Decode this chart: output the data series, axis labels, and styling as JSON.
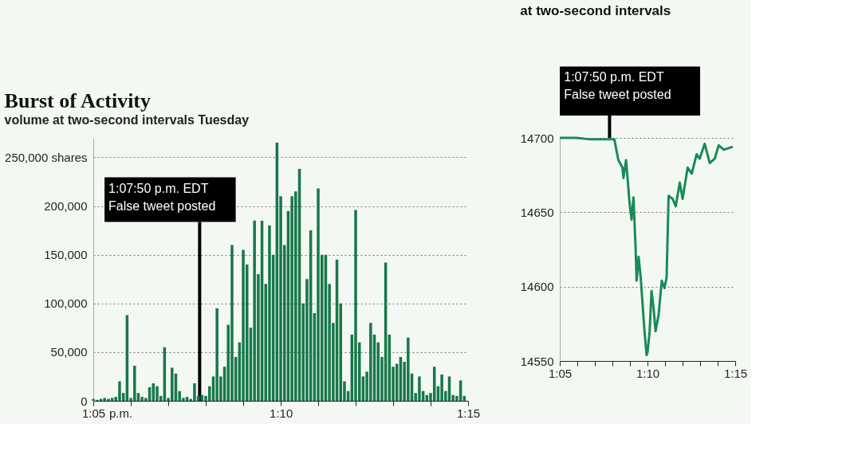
{
  "chart_data": [
    {
      "type": "bar",
      "title": "Burst of Activity",
      "subtitle": "volume at two-second intervals Tuesday",
      "color": "#17784a",
      "x": [
        1.08333,
        1.085,
        1.08667,
        1.08833,
        1.09,
        1.09167,
        1.09333,
        1.095,
        1.09667,
        1.09833,
        1.1,
        1.10167,
        1.10333,
        1.105,
        1.10667,
        1.10833,
        1.11,
        1.11167,
        1.11333,
        1.115,
        1.11667,
        1.11833,
        1.12,
        1.12167,
        1.12333,
        1.125,
        1.12667,
        1.12833,
        1.13,
        1.13167,
        1.13333,
        1.135,
        1.13667,
        1.13833,
        1.14,
        1.14167,
        1.14333,
        1.145,
        1.14667,
        1.14833,
        1.15,
        1.15167,
        1.15333,
        1.155,
        1.15667,
        1.15833,
        1.16,
        1.16167,
        1.16333,
        1.165,
        1.16667,
        1.16833,
        1.17,
        1.17167,
        1.17333,
        1.175,
        1.17667,
        1.17833,
        1.18,
        1.18167,
        1.18333,
        1.185,
        1.18667,
        1.18833,
        1.19,
        1.19167,
        1.19333,
        1.195,
        1.19667,
        1.19833,
        1.2,
        1.20167,
        1.20333,
        1.205,
        1.20667,
        1.20833,
        1.21,
        1.21167,
        1.21333,
        1.215,
        1.21667,
        1.21833,
        1.22,
        1.22167,
        1.22333,
        1.225,
        1.22667,
        1.22833,
        1.23,
        1.23167,
        1.23333,
        1.235,
        1.23667,
        1.23833,
        1.24,
        1.24167,
        1.24333,
        1.245,
        1.24667,
        1.24833
      ],
      "values": [
        2000,
        1000,
        2000,
        3000,
        2000,
        3000,
        4000,
        20000,
        8000,
        88000,
        3000,
        36000,
        8000,
        4000,
        3000,
        14000,
        18000,
        15000,
        5000,
        55000,
        3000,
        34000,
        28000,
        10000,
        3000,
        4000,
        2000,
        18000,
        5000,
        6000,
        5000,
        15000,
        25000,
        95000,
        25000,
        35000,
        78000,
        160000,
        45000,
        60000,
        155000,
        140000,
        75000,
        185000,
        130000,
        185000,
        120000,
        180000,
        150000,
        265000,
        210000,
        160000,
        195000,
        210000,
        215000,
        238000,
        100000,
        125000,
        175000,
        90000,
        218000,
        150000,
        150000,
        120000,
        80000,
        145000,
        100000,
        20000,
        10000,
        68000,
        196000,
        60000,
        25000,
        30000,
        80000,
        68000,
        60000,
        45000,
        142000,
        68000,
        35000,
        38000,
        45000,
        40000,
        65000,
        28000,
        8000,
        25000,
        10000,
        6000,
        8000,
        35000,
        15000,
        27000,
        10000,
        25000,
        6000,
        5000,
        21000,
        5000
      ],
      "xlim": [
        1.0833,
        1.25
      ],
      "xticks": [
        {
          "value": 1.0833,
          "label": "1:05"
        },
        {
          "value": 1.1,
          "label": null
        },
        {
          "value": 1.1167,
          "label": null
        },
        {
          "value": 1.1333,
          "label": null
        },
        {
          "value": 1.15,
          "label": null
        },
        {
          "value": 1.1667,
          "label": "1:10"
        },
        {
          "value": 1.1833,
          "label": null
        },
        {
          "value": 1.2,
          "label": null
        },
        {
          "value": 1.2167,
          "label": null
        },
        {
          "value": 1.2333,
          "label": null
        },
        {
          "value": 1.25,
          "label": "1:15"
        }
      ],
      "ylim": [
        0,
        270000
      ],
      "yticks": [
        {
          "value": 0,
          "label": "0"
        },
        {
          "value": 50000,
          "label": "50,000"
        },
        {
          "value": 100000,
          "label": "100,000"
        },
        {
          "value": 150000,
          "label": "150,000"
        },
        {
          "value": 200000,
          "label": "200,000"
        },
        {
          "value": 250000,
          "label": "250,000 shares"
        }
      ],
      "grid": "y",
      "annotations": [
        {
          "text": "1:07:50 p.m. EDT\nFalse tweet posted",
          "x": 1.1306,
          "y": 0
        },
        "p.m."
      ]
    },
    {
      "type": "line",
      "title": "at two-second intervals",
      "color": "#1a8a58",
      "x": [
        1.0833,
        1.099,
        1.1123,
        1.1352,
        1.1362,
        1.139,
        1.1428,
        1.1438,
        1.1463,
        1.1477,
        1.1495,
        1.1515,
        1.1533,
        1.1553,
        1.1563,
        1.1582,
        1.1602,
        1.1638,
        1.1658,
        1.1667,
        1.1687,
        1.1705,
        1.1725,
        1.1743,
        1.1772,
        1.1802,
        1.1828,
        1.1848,
        1.1867,
        1.1905,
        1.1935,
        1.1973,
        1.2,
        1.2048,
        1.2087,
        1.2133,
        1.2162,
        1.221,
        1.2258,
        1.2305,
        1.2343,
        1.2392,
        1.2477
      ],
      "values": [
        14700,
        14700,
        14699,
        14699,
        14695,
        14685,
        14680,
        14673,
        14685,
        14673,
        14657,
        14645,
        14660,
        14627,
        14604,
        14620,
        14606,
        14570,
        14554,
        14556,
        14570,
        14597,
        14585,
        14570,
        14581,
        14604,
        14599,
        14606,
        14661,
        14659,
        14654,
        14670,
        14659,
        14680,
        14676,
        14689,
        14686,
        14696,
        14683,
        14686,
        14695,
        14692,
        14694
      ],
      "xlim": [
        1.0833,
        1.25
      ],
      "xticks": [
        {
          "value": 1.0833,
          "label": "1:05"
        },
        {
          "value": 1.1,
          "label": null
        },
        {
          "value": 1.1167,
          "label": null
        },
        {
          "value": 1.1333,
          "label": null
        },
        {
          "value": 1.15,
          "label": null
        },
        {
          "value": 1.1667,
          "label": "1:10"
        },
        {
          "value": 1.1833,
          "label": null
        },
        {
          "value": 1.2,
          "label": null
        },
        {
          "value": 1.2167,
          "label": null
        },
        {
          "value": 1.2333,
          "label": null
        },
        {
          "value": 1.25,
          "label": "1:15"
        }
      ],
      "ylim": [
        14550,
        14700
      ],
      "yticks": [
        14550,
        14600,
        14650,
        14700
      ],
      "grid": "y",
      "line_style": "solid",
      "marker": "none",
      "annotations": [
        {
          "text": "1:07:50 p.m. EDT\nFalse tweet posted",
          "x": 1.1306,
          "y": 14700
        }
      ]
    }
  ]
}
